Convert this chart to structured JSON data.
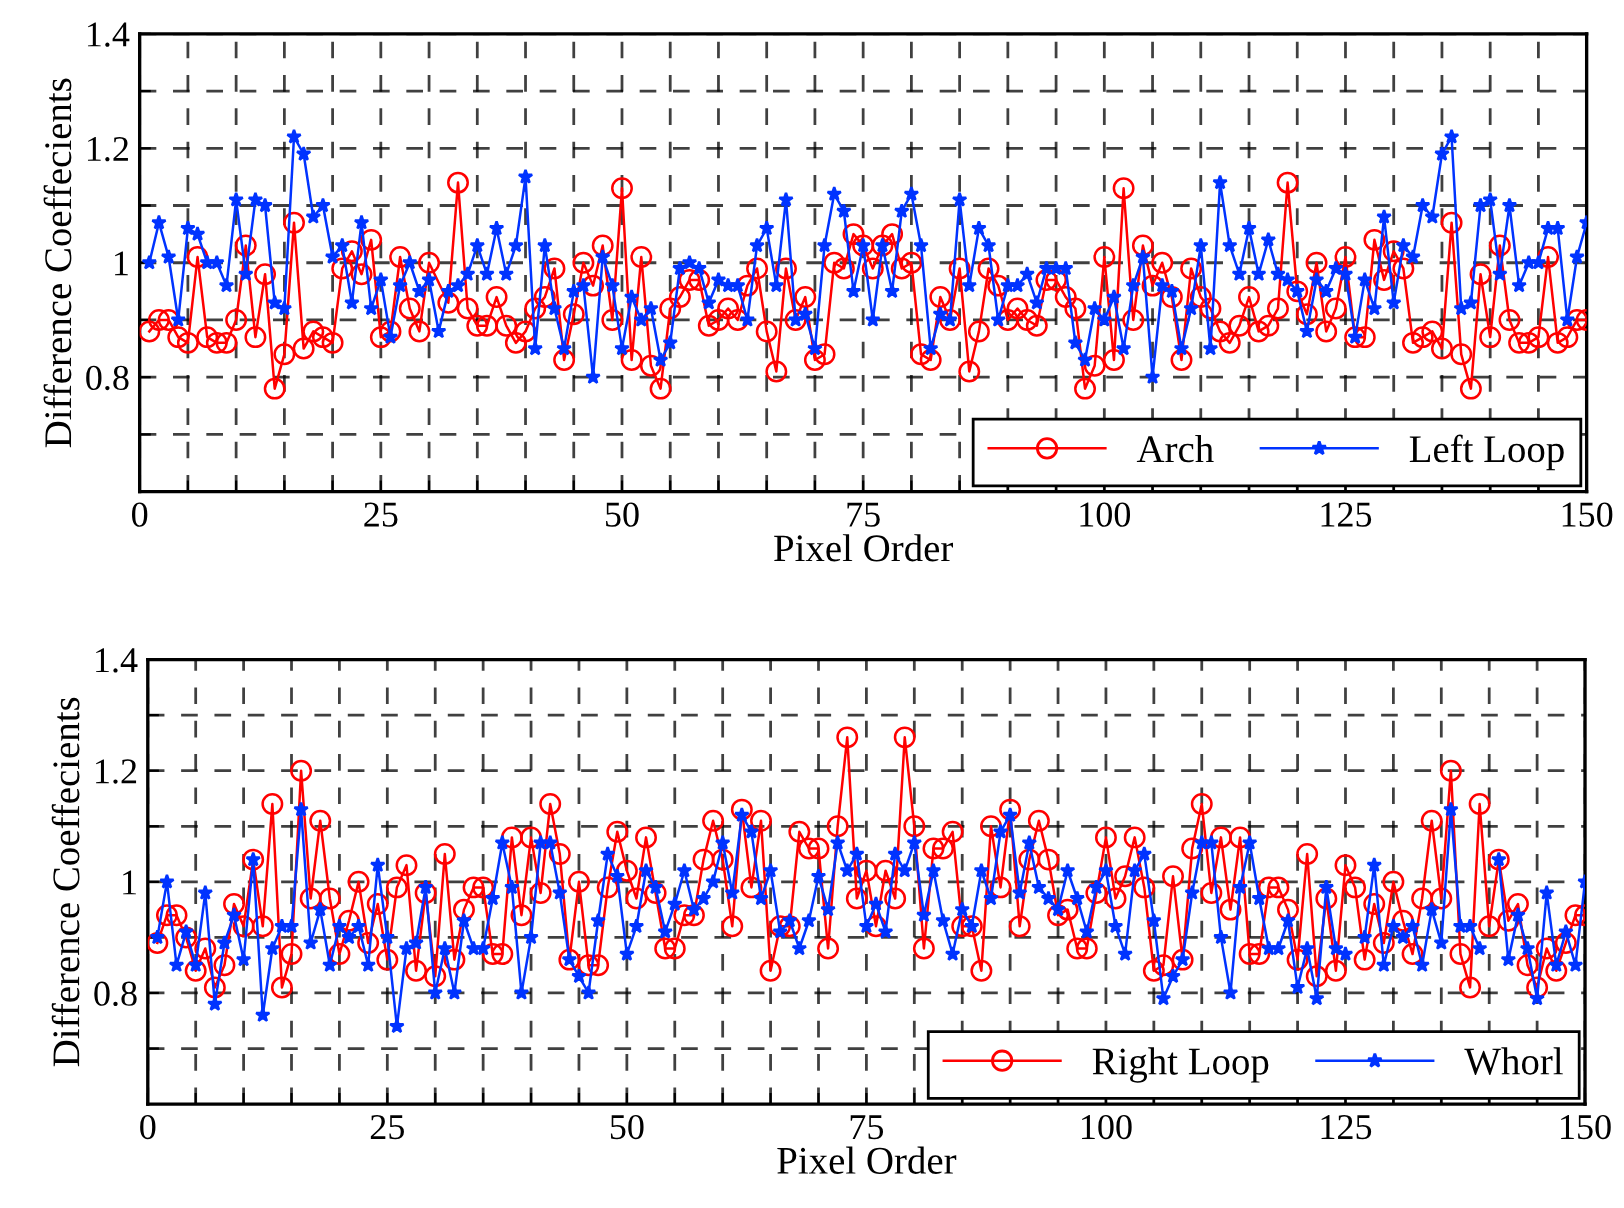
{
  "chart_data": [
    {
      "type": "line",
      "xlabel": "Pixel Order",
      "ylabel": "Difference Coeffecients",
      "xlim": [
        0,
        150
      ],
      "ylim": [
        0.6,
        1.4
      ],
      "xticks": [
        0,
        {
          "value": 5,
          "label": null
        },
        {
          "value": 10,
          "label": null
        },
        {
          "value": 15,
          "label": null
        },
        {
          "value": 20,
          "label": null
        },
        25,
        {
          "value": 30,
          "label": null
        },
        {
          "value": 35,
          "label": null
        },
        {
          "value": 40,
          "label": null
        },
        {
          "value": 45,
          "label": null
        },
        50,
        {
          "value": 55,
          "label": null
        },
        {
          "value": 60,
          "label": null
        },
        {
          "value": 65,
          "label": null
        },
        {
          "value": 70,
          "label": null
        },
        75,
        {
          "value": 80,
          "label": null
        },
        {
          "value": 85,
          "label": null
        },
        {
          "value": 90,
          "label": null
        },
        {
          "value": 95,
          "label": null
        },
        100,
        {
          "value": 105,
          "label": null
        },
        {
          "value": 110,
          "label": null
        },
        {
          "value": 115,
          "label": null
        },
        {
          "value": 120,
          "label": null
        },
        125,
        {
          "value": 130,
          "label": null
        },
        {
          "value": 135,
          "label": null
        },
        {
          "value": 140,
          "label": null
        },
        {
          "value": 145,
          "label": null
        },
        150
      ],
      "yticks": [
        {
          "value": 0.7,
          "label": null
        },
        0.8,
        {
          "value": 0.9,
          "label": null
        },
        1,
        {
          "value": 1.1,
          "label": null
        },
        1.2,
        {
          "value": 1.3,
          "label": null
        },
        1.4
      ],
      "grid": true,
      "legend": "bottom right",
      "series": [
        {
          "name": "Arch",
          "color": "#ff0000",
          "marker": "circle",
          "x": [
            1,
            2,
            3,
            4,
            5,
            6,
            7,
            8,
            9,
            10,
            11,
            12,
            13,
            14,
            15,
            16,
            17,
            18,
            19,
            20,
            21,
            22,
            23,
            24,
            25,
            26,
            27,
            28,
            29,
            30,
            32,
            33,
            34,
            35,
            36,
            37,
            38,
            39,
            40,
            41,
            42,
            43,
            44,
            45,
            46,
            47,
            48,
            49,
            50,
            51,
            52,
            53,
            54,
            55,
            56,
            57,
            58,
            59,
            60,
            61,
            62,
            63,
            64,
            65,
            66,
            67,
            68,
            69,
            70,
            71,
            72,
            73,
            74,
            75,
            76,
            77,
            78,
            79,
            80,
            81,
            82,
            83,
            84,
            85,
            86,
            87,
            88,
            89,
            90,
            91,
            92,
            93,
            94,
            95,
            96,
            97,
            98,
            99,
            100,
            101,
            102,
            103,
            104,
            105,
            106,
            107,
            108,
            109,
            110,
            111,
            112,
            113,
            114,
            115,
            116,
            117,
            118,
            119,
            120,
            121,
            122,
            123,
            124,
            125,
            126,
            127,
            128,
            129,
            130,
            131,
            132,
            133,
            134,
            135,
            136,
            137,
            138,
            139,
            140,
            141,
            142,
            143,
            144,
            145,
            146,
            147,
            148,
            149,
            150
          ],
          "values": [
            0.88,
            0.9,
            0.9,
            0.87,
            0.86,
            1.01,
            0.87,
            0.86,
            0.86,
            0.9,
            1.03,
            0.87,
            0.98,
            0.78,
            0.84,
            1.07,
            0.85,
            0.88,
            0.87,
            0.86,
            0.99,
            1.02,
            0.98,
            1.04,
            0.87,
            0.88,
            1.01,
            0.92,
            0.88,
            1.0,
            0.93,
            1.14,
            0.92,
            0.89,
            0.89,
            0.94,
            0.89,
            0.86,
            0.88,
            0.92,
            0.94,
            0.99,
            0.83,
            0.91,
            1.0,
            0.96,
            1.03,
            0.9,
            1.13,
            0.83,
            1.01,
            0.82,
            0.78,
            0.92,
            0.94,
            0.97,
            0.97,
            0.89,
            0.9,
            0.92,
            0.9,
            0.96,
            0.99,
            0.88,
            0.81,
            0.99,
            0.9,
            0.94,
            0.83,
            0.84,
            1.0,
            0.99,
            1.05,
            1.03,
            0.99,
            1.03,
            1.05,
            0.99,
            1.0,
            0.84,
            0.83,
            0.94,
            0.9,
            0.99,
            0.81,
            0.88,
            0.99,
            0.96,
            0.9,
            0.92,
            0.9,
            0.89,
            0.97,
            0.97,
            0.94,
            0.92,
            0.78,
            0.82,
            1.01,
            0.83,
            1.13,
            0.9,
            1.03,
            0.96,
            1.0,
            0.94,
            0.83,
            0.99,
            0.94,
            0.92,
            0.88,
            0.86,
            0.89,
            0.94,
            0.88,
            0.89,
            0.92,
            1.14,
            0.95,
            0.91,
            1.0,
            0.88,
            0.92,
            1.01,
            0.87,
            0.87,
            1.04,
            0.97,
            1.02,
            0.99,
            0.86,
            0.87,
            0.88,
            0.85,
            1.07,
            0.84,
            0.78,
            0.98,
            0.87,
            1.03,
            0.9,
            0.86,
            0.86,
            0.87,
            1.01,
            0.86,
            0.87,
            0.9,
            0.9
          ]
        },
        {
          "name": "Left Loop",
          "color": "#0033ff",
          "marker": "star",
          "x": [
            1,
            2,
            3,
            4,
            5,
            6,
            7,
            8,
            9,
            10,
            11,
            12,
            13,
            14,
            15,
            16,
            17,
            18,
            19,
            20,
            21,
            22,
            23,
            24,
            25,
            26,
            27,
            28,
            29,
            30,
            31,
            32,
            33,
            34,
            35,
            36,
            37,
            38,
            39,
            40,
            41,
            42,
            43,
            44,
            45,
            46,
            47,
            48,
            49,
            50,
            51,
            52,
            53,
            54,
            55,
            56,
            57,
            58,
            59,
            60,
            61,
            62,
            63,
            64,
            65,
            66,
            67,
            68,
            69,
            70,
            71,
            72,
            73,
            74,
            75,
            76,
            77,
            78,
            79,
            80,
            81,
            82,
            83,
            84,
            85,
            86,
            87,
            88,
            89,
            90,
            91,
            92,
            93,
            94,
            95,
            96,
            97,
            98,
            99,
            100,
            101,
            102,
            103,
            104,
            105,
            106,
            107,
            108,
            109,
            110,
            111,
            112,
            113,
            114,
            115,
            116,
            117,
            118,
            119,
            120,
            121,
            122,
            123,
            124,
            125,
            126,
            127,
            128,
            129,
            130,
            131,
            132,
            133,
            134,
            135,
            136,
            137,
            138,
            139,
            140,
            141,
            142,
            143,
            144,
            145,
            146,
            147,
            148,
            149,
            150
          ],
          "values": [
            1.0,
            1.07,
            1.01,
            0.9,
            1.06,
            1.05,
            1.0,
            1.0,
            0.96,
            1.11,
            0.98,
            1.11,
            1.1,
            0.93,
            0.92,
            1.22,
            1.19,
            1.08,
            1.1,
            1.01,
            1.03,
            0.93,
            1.07,
            0.92,
            0.97,
            0.87,
            0.96,
            1.0,
            0.95,
            0.97,
            0.88,
            0.95,
            0.96,
            0.98,
            1.03,
            0.98,
            1.06,
            0.98,
            1.03,
            1.15,
            0.85,
            1.03,
            0.92,
            0.85,
            0.95,
            0.96,
            0.8,
            1.01,
            0.96,
            0.85,
            0.94,
            0.9,
            0.92,
            0.83,
            0.86,
            0.99,
            1.0,
            0.99,
            0.93,
            0.97,
            0.96,
            0.96,
            0.9,
            1.03,
            1.06,
            0.96,
            1.11,
            0.9,
            0.91,
            0.85,
            1.03,
            1.12,
            1.09,
            0.95,
            1.03,
            0.9,
            1.03,
            0.95,
            1.09,
            1.12,
            1.03,
            0.85,
            0.91,
            0.9,
            1.11,
            0.96,
            1.06,
            1.03,
            0.9,
            0.96,
            0.96,
            0.98,
            0.93,
            0.99,
            0.99,
            0.99,
            0.86,
            0.83,
            0.92,
            0.9,
            0.94,
            0.85,
            0.96,
            1.01,
            0.8,
            0.96,
            0.95,
            0.85,
            0.92,
            1.03,
            0.85,
            1.14,
            1.03,
            0.98,
            1.06,
            0.98,
            1.04,
            0.98,
            0.97,
            0.95,
            0.88,
            0.97,
            0.95,
            0.99,
            0.98,
            0.87,
            0.97,
            0.92,
            1.08,
            0.93,
            1.03,
            1.01,
            1.1,
            1.08,
            1.19,
            1.22,
            0.92,
            0.93,
            1.1,
            1.11,
            0.98,
            1.1,
            0.96,
            1.0,
            1.0,
            1.06,
            1.06,
            0.9,
            1.01,
            1.07
          ]
        }
      ]
    },
    {
      "type": "line",
      "xlabel": "Pixel Order",
      "ylabel": "Difference Coeffecients",
      "xlim": [
        0,
        150
      ],
      "ylim": [
        0.6,
        1.4
      ],
      "xticks": [
        0,
        {
          "value": 5,
          "label": null
        },
        {
          "value": 10,
          "label": null
        },
        {
          "value": 15,
          "label": null
        },
        {
          "value": 20,
          "label": null
        },
        25,
        {
          "value": 30,
          "label": null
        },
        {
          "value": 35,
          "label": null
        },
        {
          "value": 40,
          "label": null
        },
        {
          "value": 45,
          "label": null
        },
        50,
        {
          "value": 55,
          "label": null
        },
        {
          "value": 60,
          "label": null
        },
        {
          "value": 65,
          "label": null
        },
        {
          "value": 70,
          "label": null
        },
        75,
        {
          "value": 80,
          "label": null
        },
        {
          "value": 85,
          "label": null
        },
        {
          "value": 90,
          "label": null
        },
        {
          "value": 95,
          "label": null
        },
        100,
        {
          "value": 105,
          "label": null
        },
        {
          "value": 110,
          "label": null
        },
        {
          "value": 115,
          "label": null
        },
        {
          "value": 120,
          "label": null
        },
        125,
        {
          "value": 130,
          "label": null
        },
        {
          "value": 135,
          "label": null
        },
        {
          "value": 140,
          "label": null
        },
        {
          "value": 145,
          "label": null
        },
        150
      ],
      "yticks": [
        {
          "value": 0.7,
          "label": null
        },
        0.8,
        {
          "value": 0.9,
          "label": null
        },
        1,
        {
          "value": 1.1,
          "label": null
        },
        1.2,
        {
          "value": 1.3,
          "label": null
        },
        1.4
      ],
      "grid": true,
      "legend": "bottom right",
      "series": [
        {
          "name": "Right Loop",
          "color": "#ff0000",
          "marker": "circle",
          "x": [
            1,
            2,
            3,
            4,
            5,
            6,
            7,
            8,
            9,
            10,
            11,
            12,
            13,
            14,
            15,
            16,
            17,
            18,
            19,
            20,
            21,
            22,
            23,
            24,
            25,
            26,
            27,
            28,
            29,
            30,
            31,
            32,
            33,
            34,
            35,
            36,
            37,
            38,
            39,
            40,
            41,
            42,
            43,
            44,
            45,
            46,
            47,
            48,
            49,
            50,
            51,
            52,
            53,
            54,
            55,
            56,
            57,
            58,
            59,
            60,
            61,
            62,
            63,
            64,
            65,
            66,
            67,
            68,
            69,
            70,
            71,
            72,
            73,
            74,
            75,
            76,
            77,
            78,
            79,
            80,
            81,
            82,
            83,
            84,
            85,
            86,
            87,
            88,
            89,
            90,
            91,
            92,
            93,
            94,
            95,
            96,
            97,
            98,
            99,
            100,
            101,
            102,
            103,
            104,
            105,
            106,
            107,
            108,
            109,
            110,
            111,
            112,
            113,
            114,
            115,
            116,
            117,
            118,
            119,
            120,
            121,
            122,
            123,
            124,
            125,
            126,
            127,
            128,
            129,
            130,
            131,
            132,
            133,
            134,
            135,
            136,
            137,
            138,
            139,
            140,
            141,
            142,
            143,
            144,
            145,
            146,
            147,
            148,
            149,
            150
          ],
          "values": [
            0.89,
            0.94,
            0.94,
            0.9,
            0.84,
            0.88,
            0.81,
            0.85,
            0.96,
            0.92,
            1.04,
            0.92,
            1.14,
            0.81,
            0.87,
            1.2,
            0.97,
            1.11,
            0.97,
            0.87,
            0.93,
            1.0,
            0.89,
            0.96,
            0.86,
            0.99,
            1.03,
            0.84,
            0.98,
            0.83,
            1.05,
            0.86,
            0.95,
            0.99,
            0.99,
            0.87,
            0.87,
            1.08,
            0.94,
            1.08,
            0.98,
            1.14,
            1.05,
            0.86,
            1.0,
            0.85,
            0.85,
            0.99,
            1.09,
            1.02,
            0.97,
            1.08,
            0.98,
            0.88,
            0.88,
            0.94,
            0.94,
            1.04,
            1.11,
            1.04,
            0.92,
            1.13,
            0.99,
            1.11,
            0.84,
            0.92,
            0.92,
            1.09,
            1.06,
            1.06,
            0.88,
            1.1,
            1.26,
            0.97,
            1.02,
            0.92,
            1.02,
            0.97,
            1.26,
            1.1,
            0.88,
            1.06,
            1.06,
            1.09,
            0.92,
            0.92,
            0.84,
            1.1,
            0.99,
            1.13,
            0.92,
            1.04,
            1.11,
            1.04,
            0.94,
            0.95,
            0.88,
            0.88,
            0.98,
            1.08,
            0.97,
            1.01,
            1.08,
            0.99,
            0.84,
            0.85,
            1.01,
            0.86,
            1.06,
            1.14,
            0.98,
            1.08,
            0.95,
            1.08,
            0.87,
            0.87,
            0.99,
            0.99,
            0.95,
            0.86,
            1.05,
            0.83,
            0.97,
            0.84,
            1.03,
            0.99,
            0.86,
            0.96,
            0.89,
            1.0,
            0.93,
            0.87,
            0.97,
            1.11,
            0.97,
            1.2,
            0.87,
            0.81,
            1.14,
            0.92,
            1.04,
            0.93,
            0.96,
            0.85,
            0.81,
            0.88,
            0.84,
            0.89,
            0.94,
            0.94
          ]
        },
        {
          "name": "Whorl",
          "color": "#0033ff",
          "marker": "star",
          "x": [
            1,
            2,
            3,
            4,
            5,
            6,
            7,
            8,
            9,
            10,
            11,
            12,
            13,
            14,
            15,
            16,
            17,
            18,
            19,
            20,
            21,
            22,
            23,
            24,
            25,
            26,
            27,
            28,
            29,
            30,
            31,
            32,
            33,
            34,
            35,
            36,
            37,
            38,
            39,
            40,
            41,
            42,
            43,
            44,
            45,
            46,
            47,
            48,
            49,
            50,
            51,
            52,
            53,
            54,
            55,
            56,
            57,
            58,
            59,
            60,
            61,
            62,
            63,
            64,
            65,
            66,
            67,
            68,
            69,
            70,
            71,
            72,
            73,
            74,
            75,
            76,
            77,
            78,
            79,
            80,
            81,
            82,
            83,
            84,
            85,
            86,
            87,
            88,
            89,
            90,
            91,
            92,
            93,
            94,
            95,
            96,
            97,
            98,
            99,
            100,
            101,
            102,
            103,
            104,
            105,
            106,
            107,
            108,
            109,
            110,
            111,
            112,
            113,
            114,
            115,
            116,
            117,
            118,
            119,
            120,
            121,
            122,
            123,
            124,
            125,
            126,
            127,
            128,
            129,
            130,
            131,
            132,
            133,
            134,
            135,
            136,
            137,
            138,
            139,
            140,
            141,
            142,
            143,
            144,
            145,
            146,
            147,
            148,
            149,
            150
          ],
          "values": [
            0.9,
            1.0,
            0.85,
            0.91,
            0.85,
            0.98,
            0.78,
            0.89,
            0.94,
            0.86,
            1.04,
            0.76,
            0.88,
            0.92,
            0.92,
            1.13,
            0.89,
            0.95,
            0.85,
            0.92,
            0.9,
            0.92,
            0.85,
            1.03,
            0.9,
            0.74,
            0.88,
            0.89,
            0.99,
            0.8,
            0.88,
            0.8,
            0.93,
            0.88,
            0.88,
            0.97,
            1.07,
            0.99,
            0.8,
            0.9,
            1.07,
            1.07,
            0.98,
            0.86,
            0.83,
            0.8,
            0.93,
            1.05,
            1.01,
            0.87,
            0.92,
            1.02,
            0.99,
            0.91,
            0.96,
            1.02,
            0.95,
            0.97,
            1.0,
            1.07,
            0.98,
            1.12,
            1.09,
            0.97,
            1.02,
            0.91,
            0.93,
            0.88,
            0.93,
            1.01,
            0.95,
            1.07,
            1.02,
            1.05,
            0.92,
            0.96,
            0.91,
            1.05,
            1.02,
            1.07,
            0.94,
            1.02,
            0.93,
            0.87,
            0.95,
            0.92,
            1.02,
            0.97,
            1.09,
            1.12,
            0.98,
            1.07,
            0.99,
            0.97,
            0.95,
            1.02,
            0.97,
            0.91,
            0.99,
            1.02,
            0.92,
            0.87,
            1.02,
            1.05,
            0.93,
            0.79,
            0.83,
            0.86,
            0.98,
            1.07,
            1.07,
            0.9,
            0.8,
            0.99,
            1.07,
            0.97,
            0.88,
            0.88,
            0.93,
            0.81,
            0.88,
            0.79,
            0.99,
            0.88,
            0.87,
            null,
            0.9,
            1.03,
            0.85,
            0.92,
            0.9,
            0.92,
            0.85,
            0.95,
            0.89,
            1.13,
            0.92,
            0.92,
            0.88,
            null,
            1.04,
            0.86,
            0.94,
            0.88,
            0.79,
            0.98,
            0.85,
            0.91,
            0.85,
            1.0
          ]
        }
      ]
    }
  ]
}
